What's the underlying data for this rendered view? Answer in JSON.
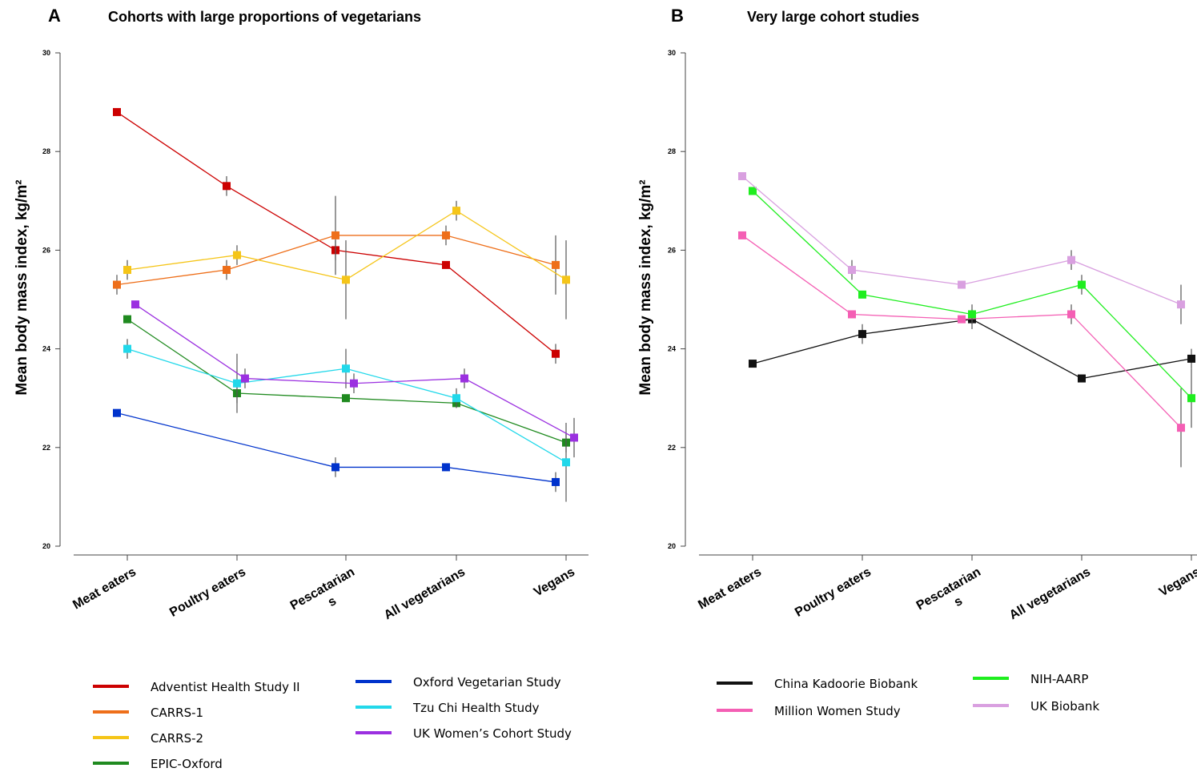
{
  "chart_data": [
    {
      "type": "line",
      "panel_letter": "A",
      "title": "Cohorts with large proportions of vegetarians",
      "ylabel": "Mean body mass index, kg/m²",
      "ylim": [
        20,
        30
      ],
      "yticks": [
        "20",
        "22",
        "24",
        "26",
        "28",
        "30"
      ],
      "categories": [
        "Meat eaters",
        "Poultry eaters",
        "Pescatarians",
        "All vegetarians",
        "Vegans"
      ],
      "category_lines": [
        [
          "Meat eaters"
        ],
        [
          "Poultry eaters"
        ],
        [
          "Pescatarian",
          "s"
        ],
        [
          "All vegetarians"
        ],
        [
          "Vegans"
        ]
      ],
      "legend_columns": 2,
      "series": [
        {
          "name": "Adventist Health Study II",
          "color": "#cc0000",
          "values": [
            28.8,
            27.3,
            26.0,
            25.7,
            23.9
          ],
          "err": [
            null,
            0.2,
            0.2,
            null,
            0.2
          ]
        },
        {
          "name": "CARRS-1",
          "color": "#ee6f1a",
          "values": [
            25.3,
            25.6,
            26.3,
            26.3,
            25.7
          ],
          "err": [
            0.2,
            0.2,
            0.8,
            0.2,
            0.6
          ]
        },
        {
          "name": "CARRS-2",
          "color": "#f5c518",
          "values": [
            25.6,
            25.9,
            25.4,
            26.8,
            25.4
          ],
          "err": [
            0.2,
            0.2,
            0.8,
            0.2,
            0.8
          ]
        },
        {
          "name": "EPIC-Oxford",
          "color": "#1f8a1f",
          "values": [
            24.6,
            23.1,
            23.0,
            22.9,
            22.1
          ],
          "err": [
            null,
            0.2,
            null,
            null,
            0.2
          ]
        },
        {
          "name": "Oxford Vegetarian Study",
          "color": "#0033cc",
          "values": [
            22.7,
            null,
            21.6,
            21.6,
            21.3
          ],
          "err": [
            null,
            null,
            0.2,
            null,
            0.2
          ]
        },
        {
          "name": "Tzu Chi Health Study",
          "color": "#22d8ea",
          "values": [
            24.0,
            23.3,
            23.6,
            23.0,
            21.7
          ],
          "err": [
            0.2,
            0.6,
            0.4,
            0.2,
            0.8
          ]
        },
        {
          "name": "UK Women’s Cohort Study",
          "color": "#9b30e0",
          "values": [
            24.9,
            23.4,
            23.3,
            23.4,
            22.2
          ],
          "err": [
            null,
            0.2,
            0.2,
            0.2,
            0.4
          ]
        }
      ]
    },
    {
      "type": "line",
      "panel_letter": "B",
      "title": "Very large cohort studies",
      "ylabel": "Mean body mass index, kg/m²",
      "ylim": [
        20,
        30
      ],
      "yticks": [
        "20",
        "22",
        "24",
        "26",
        "28",
        "30"
      ],
      "categories": [
        "Meat eaters",
        "Poultry eaters",
        "Pescatarians",
        "All vegetarians",
        "Vegans"
      ],
      "category_lines": [
        [
          "Meat eaters"
        ],
        [
          "Poultry eaters"
        ],
        [
          "Pescatarian",
          "s"
        ],
        [
          "All vegetarians"
        ],
        [
          "Vegans"
        ]
      ],
      "legend_columns": 2,
      "series": [
        {
          "name": "China Kadoorie Biobank",
          "color": "#111111",
          "values": [
            23.7,
            24.3,
            24.6,
            23.4,
            23.8
          ],
          "err": [
            null,
            0.2,
            0.2,
            null,
            0.2
          ]
        },
        {
          "name": "Million Women Study",
          "color": "#f45fb4",
          "values": [
            26.3,
            24.7,
            24.6,
            24.7,
            22.4
          ],
          "err": [
            null,
            null,
            null,
            0.2,
            0.8
          ]
        },
        {
          "name": "NIH-AARP",
          "color": "#1fee1f",
          "values": [
            27.2,
            25.1,
            24.7,
            25.3,
            23.0
          ],
          "err": [
            null,
            null,
            0.2,
            0.2,
            0.6
          ]
        },
        {
          "name": "UK Biobank",
          "color": "#d9a0e0",
          "values": [
            27.5,
            25.6,
            25.3,
            25.8,
            24.9
          ],
          "err": [
            null,
            0.2,
            null,
            0.2,
            0.4
          ]
        }
      ]
    }
  ]
}
